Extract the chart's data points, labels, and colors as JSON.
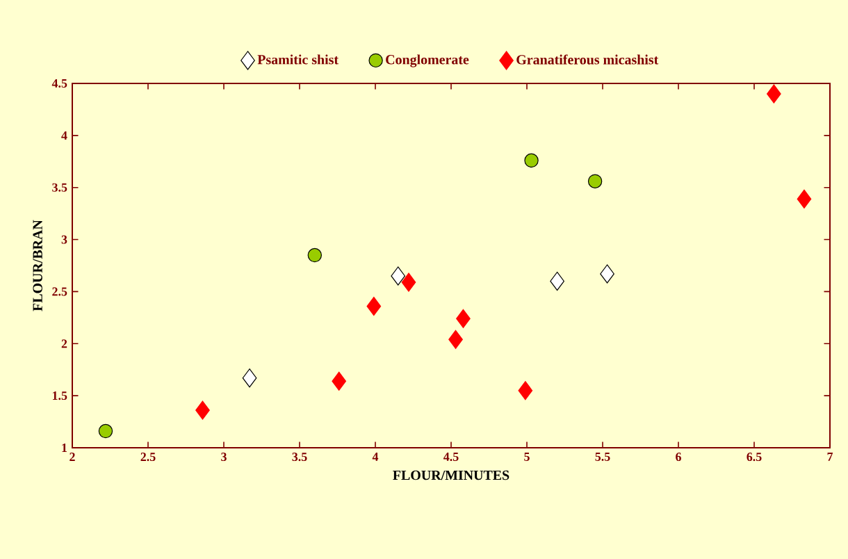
{
  "chart_data": {
    "type": "scatter",
    "xlabel": "FLOUR/MINUTES",
    "ylabel": "FLOUR/BRAN",
    "xlim": [
      2,
      7
    ],
    "xticks": [
      2,
      2.5,
      3,
      3.5,
      4,
      4.5,
      5,
      5.5,
      6,
      6.5,
      7
    ],
    "ylim": [
      1,
      4.5
    ],
    "yticks": [
      1,
      1.5,
      2,
      2.5,
      3,
      3.5,
      4,
      4.5
    ],
    "legend": "top",
    "grid": false,
    "series": [
      {
        "name": "Psamitic shist",
        "color": "#ffffff",
        "marker": "diamond",
        "x": [
          3.17,
          4.15,
          5.2,
          5.53
        ],
        "values": [
          1.67,
          2.65,
          2.6,
          2.67
        ]
      },
      {
        "name": "Conglomerate",
        "color": "#99cc00",
        "marker": "circle",
        "x": [
          2.22,
          3.6,
          5.03,
          5.45
        ],
        "values": [
          1.16,
          2.85,
          3.76,
          3.56
        ]
      },
      {
        "name": "Granatiferous micashist",
        "color": "#ff0000",
        "marker": "diamond",
        "x": [
          2.86,
          3.76,
          3.99,
          4.22,
          4.53,
          4.58,
          4.99,
          6.63,
          6.83
        ],
        "values": [
          1.36,
          1.64,
          2.36,
          2.59,
          2.04,
          2.24,
          1.55,
          4.4,
          3.39
        ]
      }
    ]
  }
}
